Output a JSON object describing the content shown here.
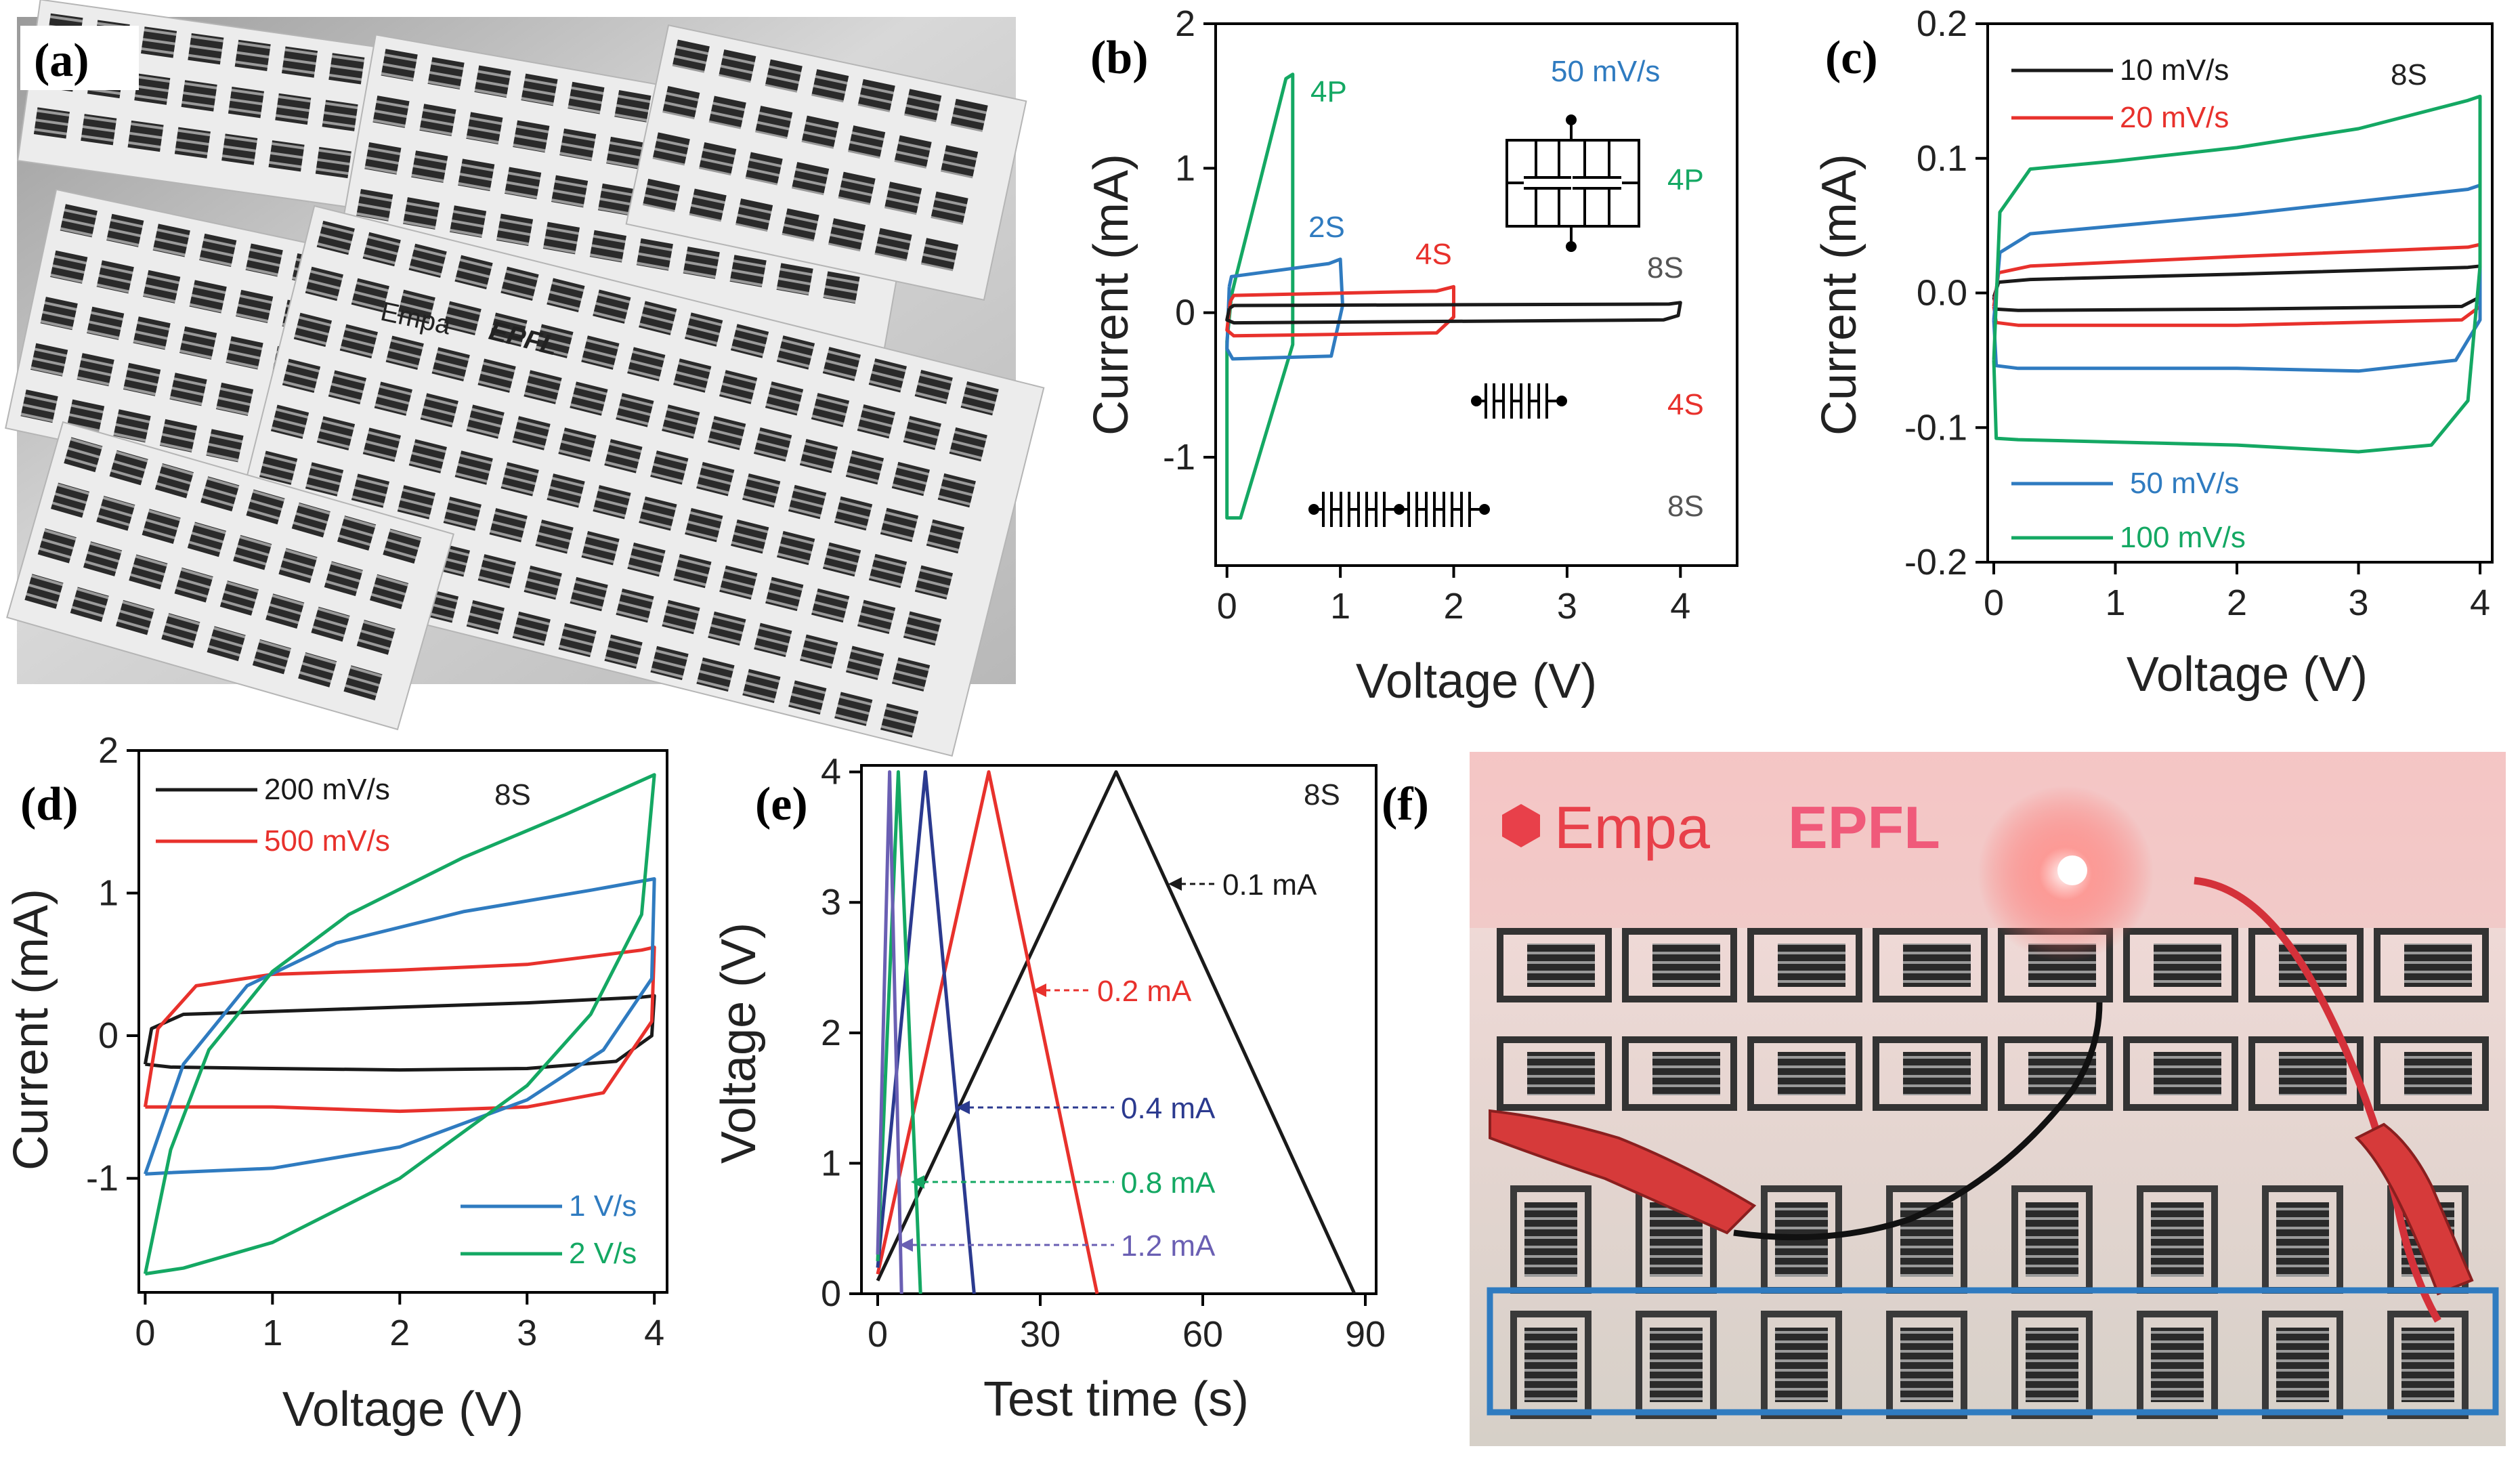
{
  "colors": {
    "black": "#1a1a1a",
    "red": "#e8312c",
    "blue": "#2f7bc0",
    "green": "#14a863",
    "navy": "#2b3a8f",
    "violet": "#6a5fb3"
  },
  "panels": {
    "a": "(a)",
    "b": "(b)",
    "c": "(c)",
    "d": "(d)",
    "e": "(e)",
    "f": "(f)"
  },
  "photo_a": {
    "logo_text": "Empa",
    "logo_text2": "EPFL"
  },
  "photo_f": {
    "logo_text": "Empa",
    "logo_text2": "EPFL"
  },
  "chart_data": [
    {
      "id": "b",
      "type": "line",
      "title": "",
      "xlabel": "Voltage (V)",
      "ylabel": "Current (mA)",
      "xlim": [
        -0.1,
        4.5
      ],
      "ylim": [
        -1.75,
        2.0
      ],
      "xticks": [
        "0",
        "1",
        "2",
        "3",
        "4"
      ],
      "yticks": [
        "-1",
        "0",
        "1",
        "2"
      ],
      "annotations": {
        "rate": "50 mV/s",
        "c4p": "4P",
        "c2s": "2S",
        "c4s": "4S",
        "c8s": "8S",
        "leg4p": "4P",
        "leg4s": "4S",
        "leg8s": "8S"
      },
      "series": [
        {
          "name": "4P",
          "color": "green",
          "points": [
            [
              0.04,
              0.12
            ],
            [
              0.0,
              -0.2
            ],
            [
              0.0,
              -1.42
            ],
            [
              0.12,
              -1.42
            ],
            [
              0.58,
              -0.22
            ],
            [
              0.58,
              1.65
            ],
            [
              0.52,
              1.62
            ],
            [
              0.08,
              0.25
            ],
            [
              0.04,
              0.12
            ]
          ]
        },
        {
          "name": "2S",
          "color": "blue",
          "points": [
            [
              0.02,
              0.18
            ],
            [
              0.04,
              0.25
            ],
            [
              0.9,
              0.34
            ],
            [
              1.0,
              0.37
            ],
            [
              1.02,
              0.05
            ],
            [
              0.92,
              -0.3
            ],
            [
              0.05,
              -0.32
            ],
            [
              0.0,
              -0.25
            ],
            [
              0.02,
              0.18
            ]
          ]
        },
        {
          "name": "4S",
          "color": "red",
          "points": [
            [
              0.03,
              0.08
            ],
            [
              0.06,
              0.12
            ],
            [
              1.85,
              0.15
            ],
            [
              2.0,
              0.18
            ],
            [
              2.0,
              -0.03
            ],
            [
              1.85,
              -0.14
            ],
            [
              0.06,
              -0.16
            ],
            [
              0.0,
              -0.12
            ],
            [
              0.03,
              0.08
            ]
          ]
        },
        {
          "name": "8S",
          "color": "black",
          "points": [
            [
              0.02,
              0.03
            ],
            [
              0.06,
              0.05
            ],
            [
              3.9,
              0.06
            ],
            [
              4.0,
              0.07
            ],
            [
              3.98,
              -0.02
            ],
            [
              3.85,
              -0.05
            ],
            [
              0.06,
              -0.07
            ],
            [
              0.0,
              -0.05
            ],
            [
              0.02,
              0.03
            ]
          ]
        }
      ]
    },
    {
      "id": "c",
      "type": "line",
      "title": "",
      "xlabel": "Voltage (V)",
      "ylabel": "Current (mA)",
      "xlim": [
        -0.05,
        4.1
      ],
      "ylim": [
        -0.2,
        0.2
      ],
      "xticks": [
        "0",
        "1",
        "2",
        "3",
        "4"
      ],
      "yticks": [
        "-0.2",
        "-0.1",
        "0.0",
        "0.1",
        "0.2"
      ],
      "annotations": {
        "tag": "8S"
      },
      "legend": [
        "10 mV/s",
        "20 mV/s",
        "50 mV/s",
        "100 mV/s"
      ],
      "series": [
        {
          "name": "10 mV/s",
          "color": "black",
          "points": [
            [
              0.0,
              -0.003
            ],
            [
              0.04,
              0.008
            ],
            [
              0.3,
              0.01
            ],
            [
              2.0,
              0.014
            ],
            [
              3.9,
              0.019
            ],
            [
              4.0,
              0.02
            ],
            [
              4.0,
              -0.003
            ],
            [
              3.85,
              -0.01
            ],
            [
              2.0,
              -0.012
            ],
            [
              0.2,
              -0.013
            ],
            [
              0.02,
              -0.012
            ],
            [
              0.0,
              -0.003
            ]
          ]
        },
        {
          "name": "20 mV/s",
          "color": "red",
          "points": [
            [
              0.0,
              -0.01
            ],
            [
              0.04,
              0.015
            ],
            [
              0.3,
              0.02
            ],
            [
              2.0,
              0.027
            ],
            [
              3.9,
              0.034
            ],
            [
              4.0,
              0.036
            ],
            [
              4.0,
              -0.01
            ],
            [
              3.85,
              -0.02
            ],
            [
              2.0,
              -0.024
            ],
            [
              0.2,
              -0.024
            ],
            [
              0.02,
              -0.022
            ],
            [
              0.0,
              -0.01
            ]
          ]
        },
        {
          "name": "50 mV/s",
          "color": "blue",
          "points": [
            [
              0.0,
              -0.02
            ],
            [
              0.05,
              0.03
            ],
            [
              0.3,
              0.044
            ],
            [
              2.0,
              0.058
            ],
            [
              3.9,
              0.077
            ],
            [
              4.0,
              0.08
            ],
            [
              4.0,
              -0.02
            ],
            [
              3.8,
              -0.05
            ],
            [
              3.0,
              -0.058
            ],
            [
              2.0,
              -0.056
            ],
            [
              0.2,
              -0.056
            ],
            [
              0.02,
              -0.054
            ],
            [
              0.0,
              -0.02
            ]
          ]
        },
        {
          "name": "100 mV/s",
          "color": "green",
          "points": [
            [
              0.0,
              -0.05
            ],
            [
              0.05,
              0.06
            ],
            [
              0.3,
              0.092
            ],
            [
              1.0,
              0.098
            ],
            [
              2.0,
              0.108
            ],
            [
              3.0,
              0.122
            ],
            [
              3.9,
              0.143
            ],
            [
              4.0,
              0.146
            ],
            [
              4.0,
              0.02
            ],
            [
              3.9,
              -0.08
            ],
            [
              3.6,
              -0.113
            ],
            [
              3.0,
              -0.118
            ],
            [
              2.0,
              -0.113
            ],
            [
              0.2,
              -0.109
            ],
            [
              0.02,
              -0.108
            ],
            [
              0.0,
              -0.05
            ]
          ]
        }
      ]
    },
    {
      "id": "d",
      "type": "line",
      "title": "",
      "xlabel": "Voltage (V)",
      "ylabel": "Current (mA)",
      "xlim": [
        -0.05,
        4.1
      ],
      "ylim": [
        -1.8,
        2.0
      ],
      "xticks": [
        "0",
        "1",
        "2",
        "3",
        "4"
      ],
      "yticks": [
        "-1",
        "0",
        "1",
        "2"
      ],
      "annotations": {
        "tag": "8S"
      },
      "legend": [
        "200 mV/s",
        "500 mV/s",
        "1 V/s",
        "2 V/s"
      ],
      "series": [
        {
          "name": "200 mV/s",
          "color": "black",
          "points": [
            [
              0.0,
              -0.2
            ],
            [
              0.05,
              0.05
            ],
            [
              0.3,
              0.15
            ],
            [
              1.0,
              0.17
            ],
            [
              2.0,
              0.2
            ],
            [
              3.0,
              0.23
            ],
            [
              3.9,
              0.27
            ],
            [
              4.0,
              0.28
            ],
            [
              3.98,
              0.0
            ],
            [
              3.7,
              -0.18
            ],
            [
              3.0,
              -0.23
            ],
            [
              2.0,
              -0.24
            ],
            [
              1.0,
              -0.23
            ],
            [
              0.2,
              -0.22
            ],
            [
              0.0,
              -0.2
            ]
          ]
        },
        {
          "name": "500 mV/s",
          "color": "red",
          "points": [
            [
              0.0,
              -0.5
            ],
            [
              0.1,
              0.05
            ],
            [
              0.4,
              0.35
            ],
            [
              1.0,
              0.43
            ],
            [
              2.0,
              0.46
            ],
            [
              3.0,
              0.5
            ],
            [
              3.9,
              0.6
            ],
            [
              4.0,
              0.62
            ],
            [
              3.98,
              0.1
            ],
            [
              3.6,
              -0.4
            ],
            [
              3.0,
              -0.5
            ],
            [
              2.0,
              -0.53
            ],
            [
              1.0,
              -0.5
            ],
            [
              0.2,
              -0.5
            ],
            [
              0.0,
              -0.5
            ]
          ]
        },
        {
          "name": "1 V/s",
          "color": "blue",
          "points": [
            [
              0.0,
              -0.97
            ],
            [
              0.3,
              -0.2
            ],
            [
              0.8,
              0.35
            ],
            [
              1.5,
              0.65
            ],
            [
              2.5,
              0.87
            ],
            [
              3.5,
              1.02
            ],
            [
              4.0,
              1.1
            ],
            [
              3.98,
              0.4
            ],
            [
              3.6,
              -0.1
            ],
            [
              3.0,
              -0.45
            ],
            [
              2.0,
              -0.78
            ],
            [
              1.0,
              -0.93
            ],
            [
              0.2,
              -0.96
            ],
            [
              0.0,
              -0.97
            ]
          ]
        },
        {
          "name": "2 V/s",
          "color": "green",
          "points": [
            [
              0.0,
              -1.67
            ],
            [
              0.2,
              -0.8
            ],
            [
              0.5,
              -0.1
            ],
            [
              1.0,
              0.45
            ],
            [
              1.6,
              0.85
            ],
            [
              2.5,
              1.25
            ],
            [
              3.3,
              1.55
            ],
            [
              4.0,
              1.83
            ],
            [
              3.9,
              0.85
            ],
            [
              3.5,
              0.15
            ],
            [
              3.0,
              -0.35
            ],
            [
              2.0,
              -1.0
            ],
            [
              1.0,
              -1.45
            ],
            [
              0.3,
              -1.63
            ],
            [
              0.0,
              -1.67
            ]
          ]
        }
      ]
    },
    {
      "id": "e",
      "type": "line",
      "title": "",
      "xlabel": "Test time (s)",
      "ylabel": "Voltage (V)",
      "xlim": [
        -3,
        92
      ],
      "ylim": [
        0,
        4.05
      ],
      "xticks": [
        "0",
        "30",
        "60",
        "90"
      ],
      "yticks": [
        "0",
        "1",
        "2",
        "3",
        "4"
      ],
      "annotations": {
        "tag": "8S"
      },
      "labels": [
        "0.1 mA",
        "0.2 mA",
        "0.4 mA",
        "0.8 mA",
        "1.2 mA"
      ],
      "series": [
        {
          "name": "0.1 mA",
          "color": "black",
          "points": [
            [
              0,
              0.1
            ],
            [
              44,
              4.0
            ],
            [
              88,
              0.0
            ]
          ]
        },
        {
          "name": "0.2 mA",
          "color": "red",
          "points": [
            [
              0,
              0.15
            ],
            [
              20.5,
              4.0
            ],
            [
              40.5,
              0.0
            ]
          ]
        },
        {
          "name": "0.4 mA",
          "color": "navy",
          "points": [
            [
              0,
              0.2
            ],
            [
              8.8,
              4.0
            ],
            [
              17.8,
              0.0
            ]
          ]
        },
        {
          "name": "0.8 mA",
          "color": "green",
          "points": [
            [
              0,
              0.25
            ],
            [
              3.8,
              4.0
            ],
            [
              7.9,
              0.0
            ]
          ]
        },
        {
          "name": "1.2 mA",
          "color": "violet",
          "points": [
            [
              0,
              0.3
            ],
            [
              2.2,
              4.0
            ],
            [
              4.4,
              0.0
            ]
          ]
        }
      ]
    }
  ]
}
